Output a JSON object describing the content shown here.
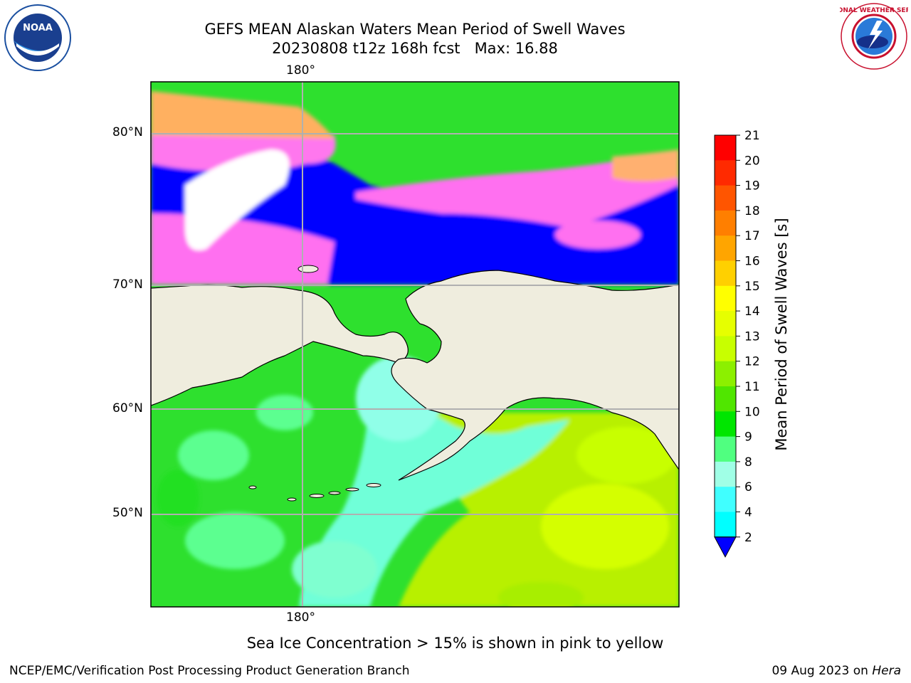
{
  "title_line1": "GEFS MEAN Alaskan Waters Mean Period of Swell Waves",
  "title_line2": "20230808 t12z 168h fcst   Max: 16.88",
  "map": {
    "top_lon_label": "180°",
    "bottom_lon_label": "180°",
    "lat_labels": [
      "80°N",
      "70°N",
      "60°N",
      "50°N"
    ]
  },
  "colorbar": {
    "title": "Mean Period of Swell Waves [s]",
    "ticks": [
      "21",
      "20",
      "19",
      "18",
      "17",
      "16",
      "15",
      "14",
      "13",
      "12",
      "11",
      "10",
      "9",
      "8",
      "6",
      "4",
      "2"
    ],
    "colors": [
      "#ff0000",
      "#ff2a00",
      "#ff5500",
      "#ff7f00",
      "#ffa500",
      "#ffd000",
      "#ffff00",
      "#e6ff00",
      "#c8ff00",
      "#8cf000",
      "#50e600",
      "#00e600",
      "#50ff80",
      "#a0ffe6",
      "#40ffff",
      "#00ffff",
      "#00c8ff",
      "#0078ff"
    ],
    "under_color": "#0000ff"
  },
  "sea_ice_note": "Sea Ice Concentration > 15% is shown in pink to yellow",
  "credit": "NCEP/EMC/Verification Post Processing Product Generation Branch",
  "date_prefix": "09 Aug 2023 on",
  "date_host": "Hera",
  "logos": {
    "noaa_text": "NOAA",
    "nws_text": "NATIONAL WEATHER SERVICE"
  }
}
